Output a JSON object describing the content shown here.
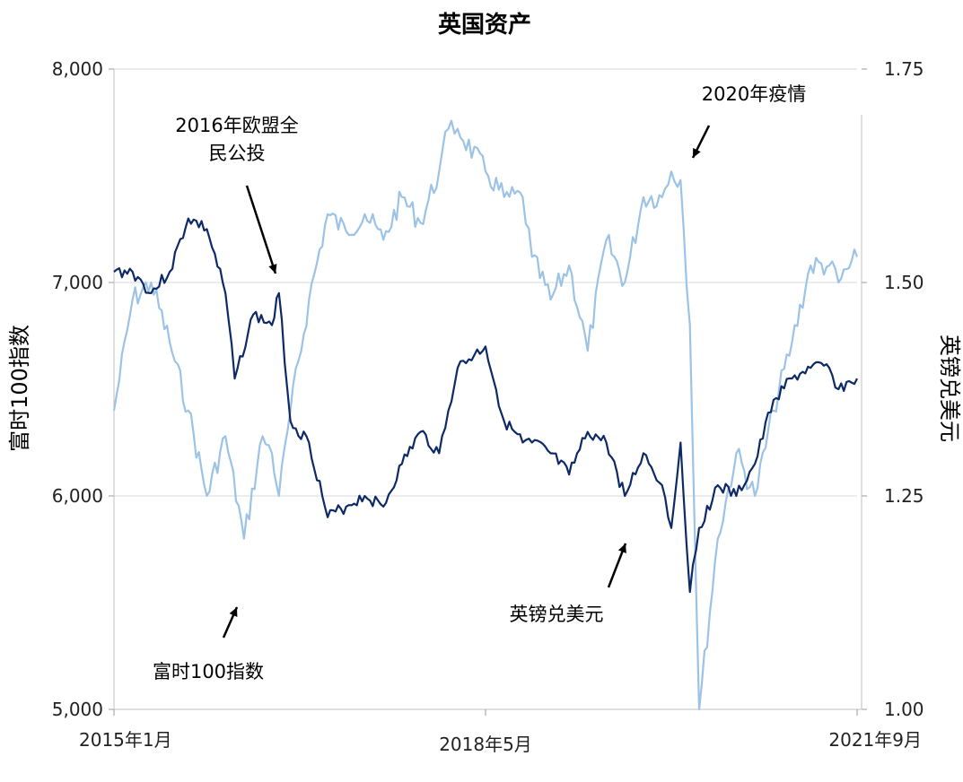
{
  "chart_data": {
    "type": "line",
    "title": "英国资产",
    "y_left_label": "富时100指数",
    "y_right_label": "英镑兑美元",
    "x_ticks": [
      "2015年1月",
      "2018年5月",
      "2021年9月"
    ],
    "y_left_ticks": [
      "5,000",
      "6,000",
      "7,000",
      "8,000"
    ],
    "y_right_ticks": [
      "1.00",
      "1.25",
      "1.50",
      "1.75"
    ],
    "y_left_range": [
      5000,
      8000
    ],
    "y_right_range": [
      1.0,
      1.75
    ],
    "grid": true,
    "colors": {
      "ftse": "#0d2a66",
      "gbp": "#9cc3e6"
    },
    "series": [
      {
        "name": "富时100指数",
        "axis": "left",
        "x": [
          "2015-01",
          "2015-03",
          "2015-05",
          "2015-07",
          "2015-09",
          "2015-11",
          "2016-01",
          "2016-02",
          "2016-04",
          "2016-06",
          "2016-06-24",
          "2016-08",
          "2016-10",
          "2016-12",
          "2017-02",
          "2017-04",
          "2017-06",
          "2017-08",
          "2017-10",
          "2017-12",
          "2018-01",
          "2018-02",
          "2018-05",
          "2018-07",
          "2018-09",
          "2018-10",
          "2018-12",
          "2019-02",
          "2019-04",
          "2019-06",
          "2019-08",
          "2019-10",
          "2019-12",
          "2020-01",
          "2020-02",
          "2020-03",
          "2020-04",
          "2020-06",
          "2020-08",
          "2020-10",
          "2020-12",
          "2021-02",
          "2021-04",
          "2021-06",
          "2021-07",
          "2021-09"
        ],
        "values": [
          7050,
          7050,
          6950,
          7050,
          7300,
          7250,
          6950,
          6550,
          6850,
          6800,
          6950,
          6350,
          6250,
          5900,
          5950,
          6000,
          5950,
          6150,
          6300,
          6200,
          6400,
          6600,
          6700,
          6350,
          6250,
          6250,
          6200,
          6100,
          6300,
          6250,
          6000,
          6200,
          6050,
          5850,
          6250,
          5550,
          5850,
          6050,
          6000,
          6150,
          6450,
          6550,
          6600,
          6600,
          6500,
          6550
        ]
      },
      {
        "name": "英镑兑美元",
        "axis": "right",
        "x": [
          "2015-01",
          "2015-03",
          "2015-05",
          "2015-07",
          "2015-09",
          "2015-11",
          "2016-01",
          "2016-03",
          "2016-05",
          "2016-06",
          "2016-06-24",
          "2016-08",
          "2016-10",
          "2016-12",
          "2017-02",
          "2017-04",
          "2017-06",
          "2017-08",
          "2017-10",
          "2017-12",
          "2018-01",
          "2018-02",
          "2018-05",
          "2018-07",
          "2018-09",
          "2018-10",
          "2018-12",
          "2019-02",
          "2019-04",
          "2019-06",
          "2019-08",
          "2019-10",
          "2019-12",
          "2020-01",
          "2020-02",
          "2020-03",
          "2020-04",
          "2020-06",
          "2020-08",
          "2020-10",
          "2020-12",
          "2021-02",
          "2021-04",
          "2021-06",
          "2021-07",
          "2021-09"
        ],
        "values": [
          1.35,
          1.48,
          1.5,
          1.43,
          1.35,
          1.25,
          1.32,
          1.2,
          1.32,
          1.3,
          1.25,
          1.35,
          1.48,
          1.58,
          1.56,
          1.58,
          1.55,
          1.6,
          1.57,
          1.63,
          1.68,
          1.68,
          1.63,
          1.6,
          1.6,
          1.53,
          1.48,
          1.52,
          1.42,
          1.55,
          1.5,
          1.6,
          1.6,
          1.63,
          1.62,
          1.45,
          1.0,
          1.2,
          1.3,
          1.25,
          1.35,
          1.43,
          1.52,
          1.52,
          1.5,
          1.53
        ]
      }
    ],
    "annotations": [
      {
        "id": "brexit",
        "lines": [
          "2016年欧盟全",
          "民公投"
        ],
        "target_x": "2016-06-24",
        "target_series": 0
      },
      {
        "id": "covid",
        "lines": [
          "2020年疫情"
        ],
        "target_x": "2020-02",
        "target_series": 1
      },
      {
        "id": "ftse",
        "lines": [
          "富时100指数"
        ],
        "target_x": "2016-03",
        "target_series": 1
      },
      {
        "id": "gbp",
        "lines": [
          "英镑兑美元"
        ],
        "target_x": "2019-04",
        "target_series": 0
      }
    ]
  }
}
